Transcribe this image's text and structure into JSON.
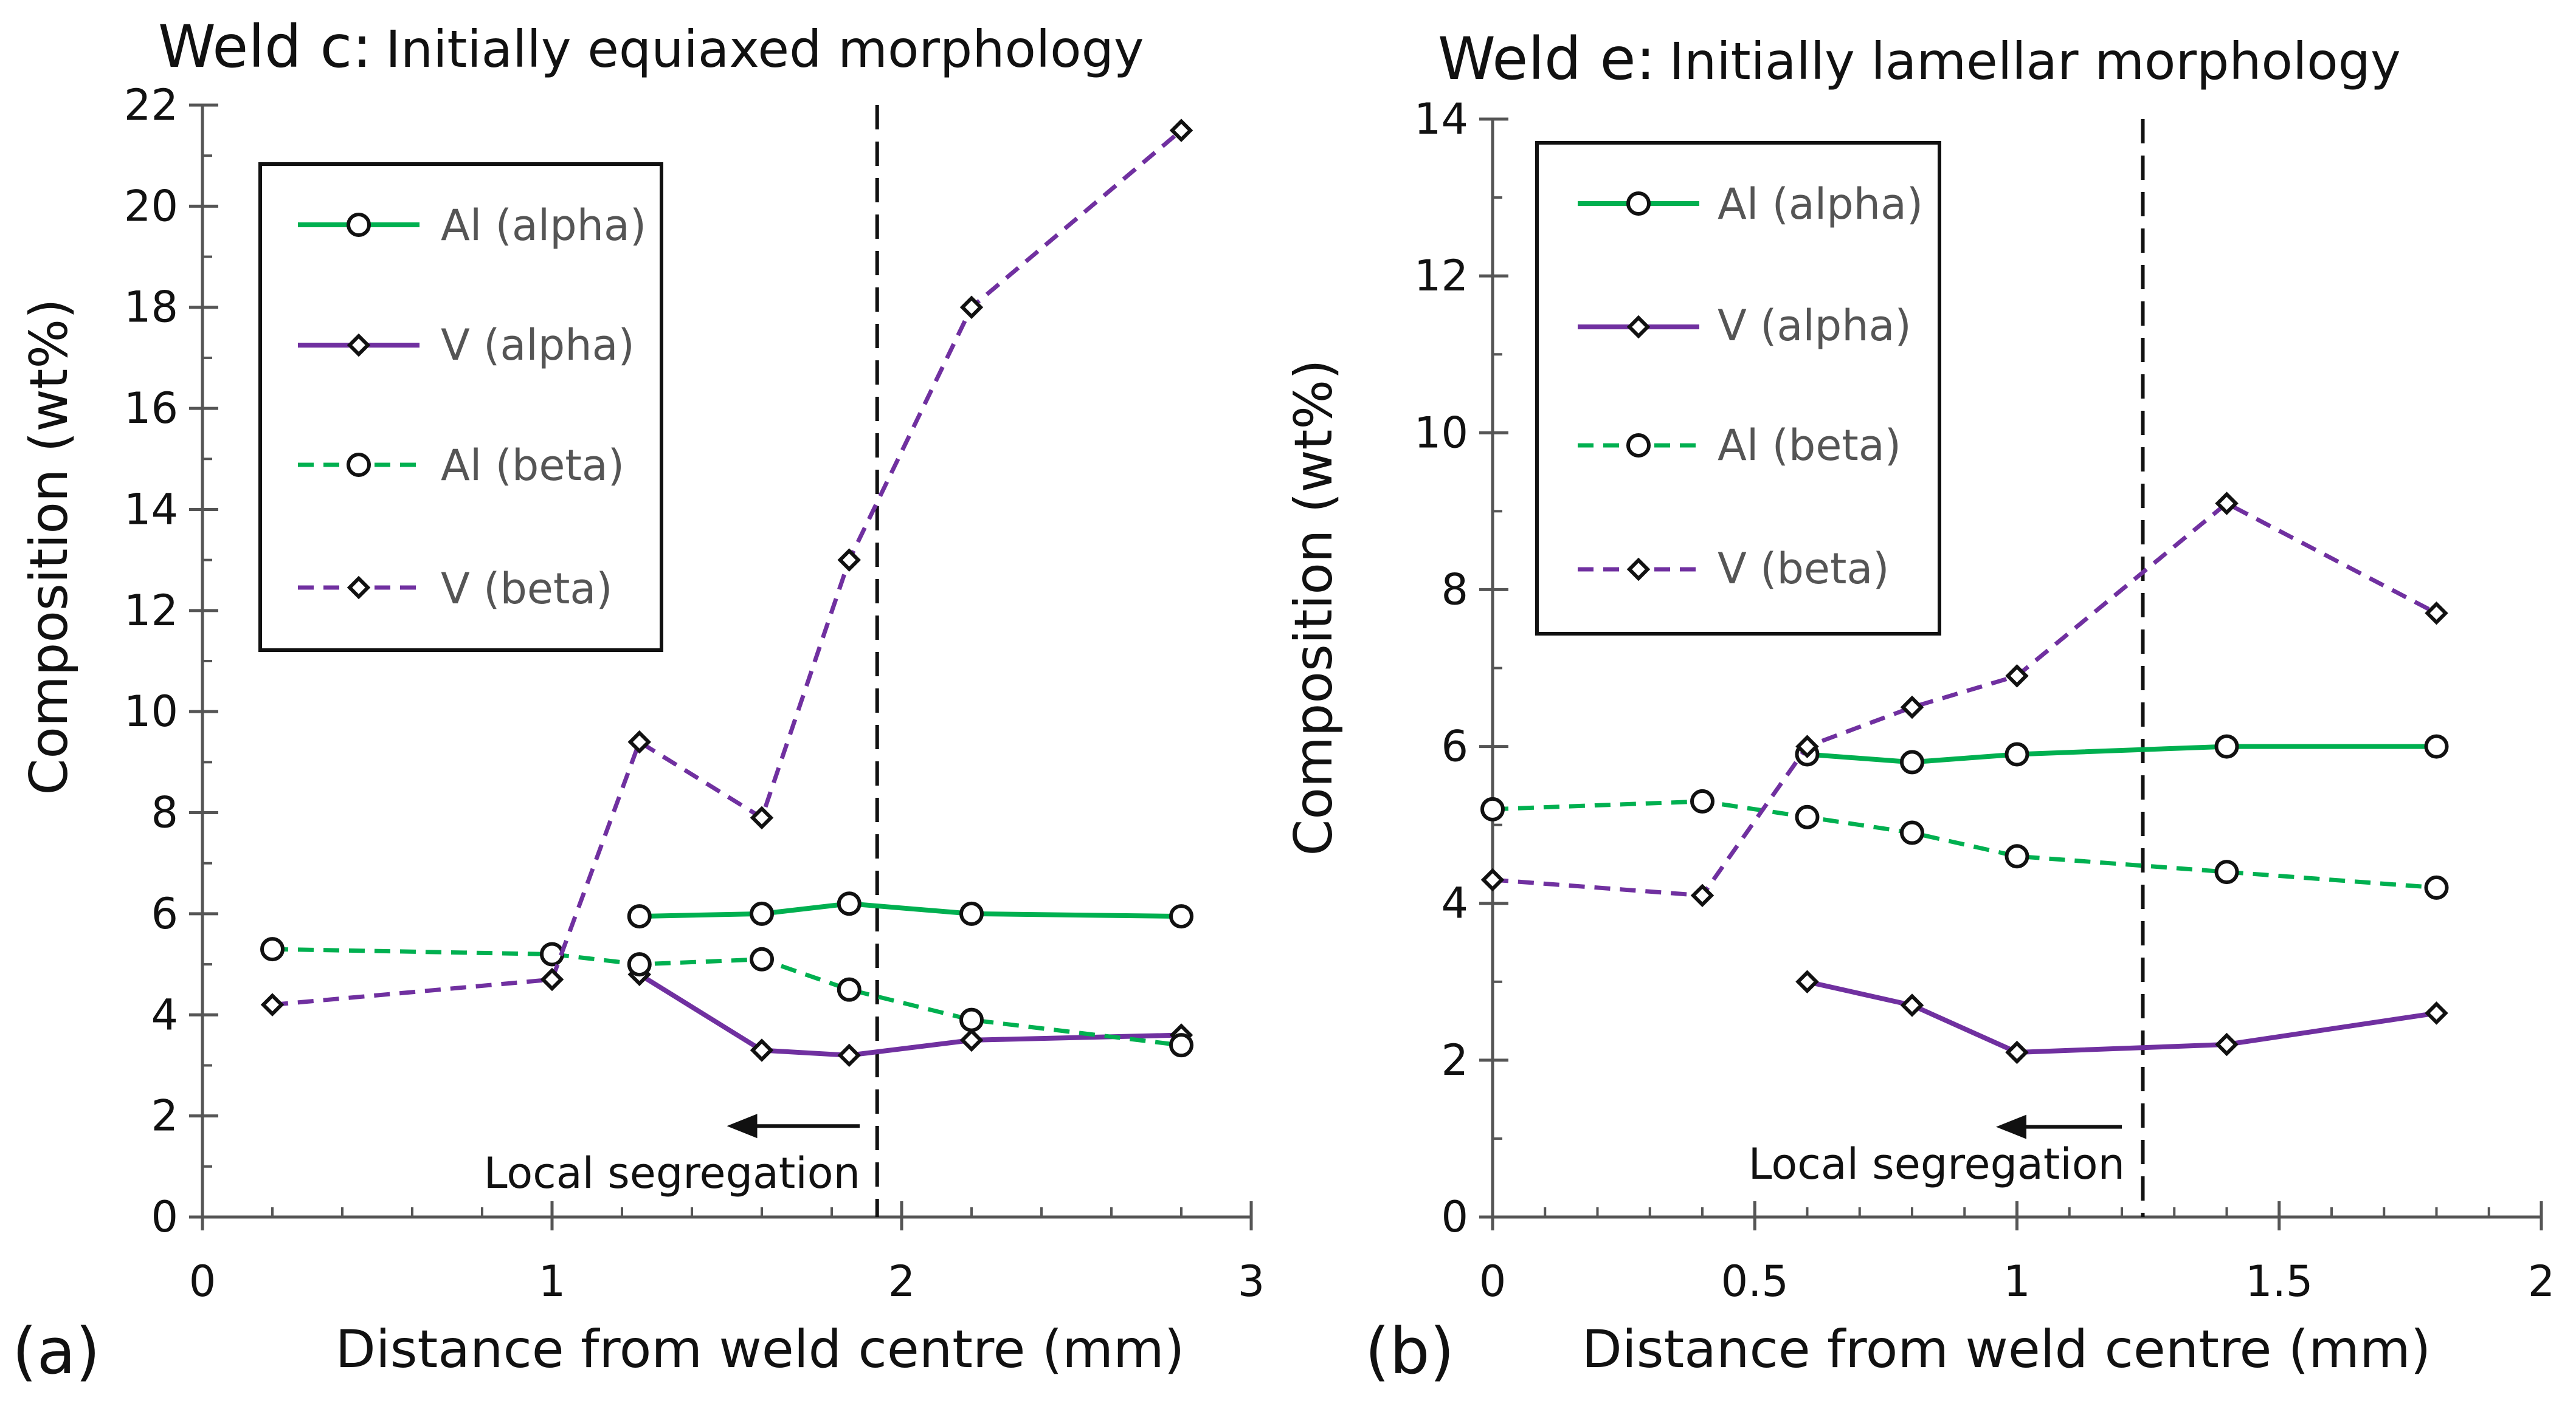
{
  "colors": {
    "al": "#00b050",
    "v": "#7030a0",
    "marker_fill": "#ffffff",
    "marker_stroke": "#111111",
    "axis": "#555555",
    "text": "#111111"
  },
  "chart_data": [
    {
      "type": "line",
      "panel_label": "(a)",
      "title_main": "Weld c:",
      "title_sub": "Initially equiaxed morphology",
      "xlabel": "Distance from weld centre (mm)",
      "ylabel": "Composition (wt%)",
      "xlim": [
        0,
        3
      ],
      "ylim": [
        0,
        22
      ],
      "xticks": [
        0,
        1,
        2,
        3
      ],
      "yticks": [
        0,
        2,
        4,
        6,
        8,
        10,
        12,
        14,
        16,
        18,
        20,
        22
      ],
      "xminor": 0.2,
      "yminor": 1,
      "grid": false,
      "legend_position": "top-left",
      "series": [
        {
          "name": "Al (alpha)",
          "element": "al",
          "dashed": false,
          "marker": "circle",
          "x": [
            1.25,
            1.6,
            1.85,
            2.2,
            2.8
          ],
          "values": [
            5.95,
            6.0,
            6.2,
            6.0,
            5.95
          ]
        },
        {
          "name": "V (alpha)",
          "element": "v",
          "dashed": false,
          "marker": "diamond",
          "x": [
            1.25,
            1.6,
            1.85,
            2.2,
            2.8
          ],
          "values": [
            4.8,
            3.3,
            3.2,
            3.5,
            3.6
          ]
        },
        {
          "name": "Al (beta)",
          "element": "al",
          "dashed": true,
          "marker": "circle",
          "x": [
            0.2,
            1.0,
            1.25,
            1.6,
            1.85,
            2.2,
            2.8
          ],
          "values": [
            5.3,
            5.2,
            5.0,
            5.1,
            4.5,
            3.9,
            3.4
          ]
        },
        {
          "name": "V (beta)",
          "element": "v",
          "dashed": true,
          "marker": "diamond",
          "x": [
            0.2,
            1.0,
            1.25,
            1.6,
            1.85,
            2.2,
            2.8
          ],
          "values": [
            4.2,
            4.7,
            9.4,
            7.9,
            13.0,
            18.0,
            21.5
          ]
        }
      ],
      "vline_x": 1.93,
      "annotation": {
        "text": "Local segregation",
        "arrow_from_x": 1.88,
        "arrow_to_x": 1.5,
        "arrow_y": 1.8
      }
    },
    {
      "type": "line",
      "panel_label": "(b)",
      "title_main": "Weld e:",
      "title_sub": "Initially lamellar morphology",
      "xlabel": "Distance from weld centre (mm)",
      "ylabel": "Composition (wt%)",
      "xlim": [
        0,
        2
      ],
      "ylim": [
        0,
        14
      ],
      "xticks": [
        0,
        0.5,
        1,
        1.5,
        2
      ],
      "yticks": [
        0,
        2,
        4,
        6,
        8,
        10,
        12,
        14
      ],
      "xminor": 0.1,
      "yminor": 1,
      "grid": false,
      "legend_position": "top-left",
      "series": [
        {
          "name": "Al (alpha)",
          "element": "al",
          "dashed": false,
          "marker": "circle",
          "x": [
            0.6,
            0.8,
            1.0,
            1.4,
            1.8
          ],
          "values": [
            5.9,
            5.8,
            5.9,
            6.0,
            6.0
          ]
        },
        {
          "name": "V (alpha)",
          "element": "v",
          "dashed": false,
          "marker": "diamond",
          "x": [
            0.6,
            0.8,
            1.0,
            1.4,
            1.8
          ],
          "values": [
            3.0,
            2.7,
            2.1,
            2.2,
            2.6
          ]
        },
        {
          "name": "Al (beta)",
          "element": "al",
          "dashed": true,
          "marker": "circle",
          "x": [
            0.0,
            0.4,
            0.6,
            0.8,
            1.0,
            1.4,
            1.8
          ],
          "values": [
            5.2,
            5.3,
            5.1,
            4.9,
            4.6,
            4.4,
            4.2
          ]
        },
        {
          "name": "V (beta)",
          "element": "v",
          "dashed": true,
          "marker": "diamond",
          "x": [
            0.0,
            0.4,
            0.6,
            0.8,
            1.0,
            1.4,
            1.8
          ],
          "values": [
            4.3,
            4.1,
            6.0,
            6.5,
            6.9,
            9.1,
            7.7
          ]
        }
      ],
      "vline_x": 1.24,
      "annotation": {
        "text": "Local segregation",
        "arrow_from_x": 1.2,
        "arrow_to_x": 0.96,
        "arrow_y": 1.15
      }
    }
  ]
}
